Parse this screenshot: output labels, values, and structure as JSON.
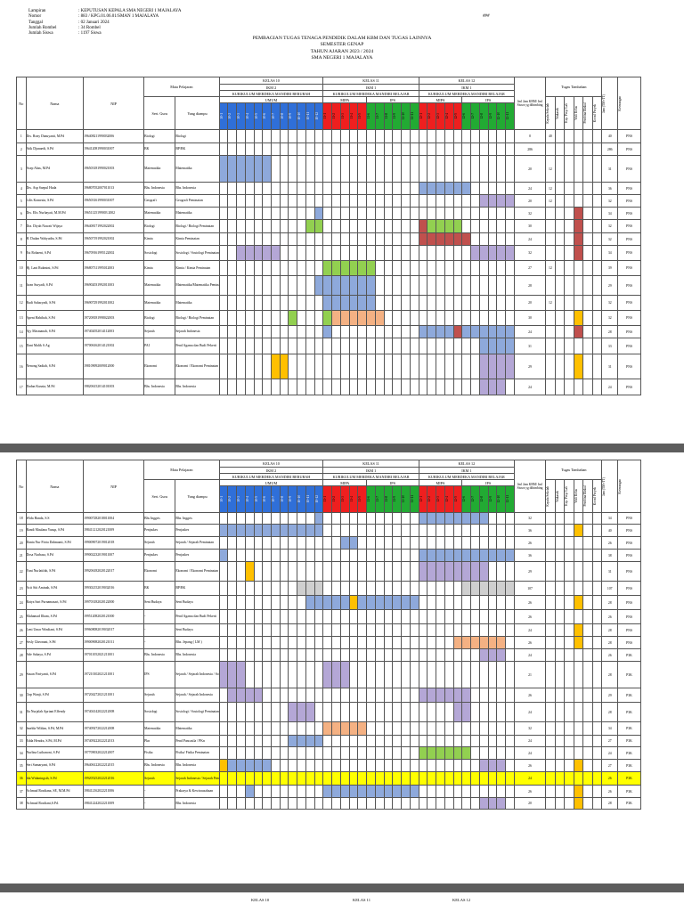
{
  "meta": [
    {
      "k": "Lampiran",
      "v": ": KEPUTUSAN KEPALA SMA NEGERI 1 MAJALAYA"
    },
    {
      "k": "Nomor",
      "v": ": 883 / KPG.01.06.01/SMAN 1 MAJALAYA"
    },
    {
      "k": "Tanggal",
      "v": ": 02 Januari 2024"
    },
    {
      "k": "Jumlah Rombel",
      "v": ": 34 Rombel"
    },
    {
      "k": "Jumlah Siswa",
      "v": ": 1197 Siswa"
    }
  ],
  "page_no": "###",
  "title": [
    "PEMBAGIAN TUGAS TENAGA PENDIDIK DALAM KBM DAN TUGAS LAINNYA",
    "SEMESTER GENAP",
    "TAHUN AJARAN 2023 / 2024",
    "SMA NEGERI 1 MAJALAYA"
  ],
  "header": {
    "no": "No",
    "nama": "Nama",
    "nip": "NIP",
    "mapel": "Mata Pelajaran",
    "sert": "Sert. Guru",
    "diampu": "Yang diampu",
    "k10": "KELAS 10",
    "k11": "KELAS 11",
    "k12": "KELAS 12",
    "ikm2": "IKM 2",
    "ikm1a": "IKM 1",
    "ikm1b": "IKM 1",
    "kur10": "KURIKULUM MERDEKA MANDIRI BERUBAH",
    "kur11": "KURIKULUM MERDEKA MANDIRI BELAJAR",
    "kur12": "KURIKULUM MERDEKA MANDIRI BELAJAR",
    "umum": "UMUM",
    "mipa": "MIPA",
    "ips": "IPS",
    "jml": "Jml Jam KBM/ Jml Siswa yg dibimbing",
    "tugas": "Tugas Tambahan",
    "tugas_cols": [
      "Kepala Sekolah",
      "Wakasek",
      "Kep. Perp/ Lab",
      "Wali Kelas",
      "Pembina Ekskul",
      "Koord Proyek"
    ],
    "jam": "Jam (TM+TT)",
    "ket": "Keterangan",
    "cls10": [
      "10-1",
      "10-2",
      "10-3",
      "10-4",
      "10-5",
      "10-6",
      "10-7",
      "10-8",
      "10-9",
      "10-10",
      "10-11",
      "10-12"
    ],
    "cls11": [
      "11-1",
      "11-2",
      "11-3",
      "11-4",
      "11-5",
      "11-6",
      "11-7",
      "11-8",
      "11-9",
      "11-10",
      "11-11"
    ],
    "cls12": [
      "12-1",
      "12-2",
      "12-3",
      "12-4",
      "12-5",
      "12-6",
      "12-7",
      "12-8",
      "12-9",
      "12-10",
      "12-11"
    ]
  },
  "rows1": [
    {
      "no": "1",
      "nama": "Drs. Rony Danuyanti, M.Pd",
      "nip": "196408211990032006",
      "sert": "Biologi",
      "diampu": "Biologi",
      "c10": "",
      "c11": "",
      "c12": "",
      "jml": "0",
      "x": "40",
      "t": "",
      "jam": "40",
      "ket": "PNS"
    },
    {
      "no": "2",
      "nama": "Atik Djunaedi, S.Pd",
      "nip": "196412081990031007",
      "sert": "BK",
      "diampu": "BP/BK",
      "c10": "",
      "c11": "000000000000000000ssssssss",
      "c12": "",
      "jml": "286",
      "x": "",
      "t": "",
      "jam": "286",
      "ket": "PNS"
    },
    {
      "no": "3",
      "nama": "Asep Abas, M.Pd",
      "nip": "196503181990021003",
      "sert": "Matematika",
      "diampu": "Matematika",
      "c10": "bbbbbb",
      "c11": "",
      "c12": "",
      "jml": "20",
      "x": "12",
      "t": "",
      "jam": "31",
      "ket": "PNS"
    },
    {
      "no": "4",
      "nama": "Drs. Asp Saepul Huda",
      "nip": "196807052007011013",
      "sert": "Bhs. Indonesia",
      "diampu": "Bhs. Indonesia",
      "c10": "",
      "c11": "",
      "c12": "bbbbbb",
      "jml": "24",
      "x": "12",
      "t": "",
      "jam": "36",
      "ket": "PNS"
    },
    {
      "no": "5",
      "nama": "Lilis Komesin, S.Pd",
      "nip": "196503161990031007",
      "sert": "Geografi",
      "diampu": "Geografi Peminatan",
      "c10": "",
      "c11": "",
      "c12": "0000000ppppp",
      "jml": "20",
      "x": "12",
      "t": "",
      "jam": "32",
      "ket": "PNS"
    },
    {
      "no": "6",
      "nama": "Drs. Elis Nurhayati, M.M.Pd",
      "nip": "19651125199003 2002",
      "sert": "Matematika",
      "diampu": "Matematika",
      "c10": "00000000000b",
      "c11": "",
      "c12": "",
      "jml": "32",
      "x": "",
      "t": "r",
      "jam": "34",
      "ket": "PNS"
    },
    {
      "no": "7",
      "nama": "Dra. Diyah Nawati Wijaya",
      "nip": "196408171992022002",
      "sert": "Biologi",
      "diampu": "Biologi / Biologi Peminatan",
      "c10": "0000000000gg",
      "c11": "",
      "c12": "rgggg",
      "jml": "30",
      "x": "",
      "t": "r",
      "jam": "32",
      "ket": "PNS"
    },
    {
      "no": "8",
      "nama": "H. Dadan Wahyudin, S.Pd",
      "nip": "196507191992021002",
      "sert": "Kimia",
      "diampu": "Kimia Peminatan",
      "c10": "",
      "c11": "",
      "c12": "rrrrrr",
      "jml": "24",
      "x": "",
      "t": "r",
      "jam": "32",
      "ket": "PNS"
    },
    {
      "no": "9",
      "nama": "Esi Rohaeni, S.Pd",
      "nip": "196709161995122002",
      "sert": "Sosiologi",
      "diampu": "Sosiologi / Sosiologi Peminatan",
      "c10": "00ppppp",
      "c11": "",
      "c12": "000000pppppp",
      "jml": "32",
      "x": "",
      "t": "r",
      "jam": "34",
      "ket": "PNS"
    },
    {
      "no": "10",
      "nama": "Hj. Lani Rukmini, S.Pd",
      "nip": "196807311995012003",
      "sert": "Kimia",
      "diampu": "Kimia / Kimia Peminatan",
      "c10": "",
      "c11": "gggggg",
      "c12": "",
      "jml": "27",
      "x": "12",
      "t": "",
      "jam": "39",
      "ket": "PNS"
    },
    {
      "no": "11",
      "nama": "Iwan Suryadi, S.Pd",
      "nip": "196902031992011003",
      "sert": "Matematika",
      "diampu": "Matematika/Matematika Peminatan",
      "c10": "00000000000b",
      "c11": "bbbbbb",
      "c12": "",
      "jml": "28",
      "x": "",
      "t": "",
      "jam": "29",
      "ket": "PNS"
    },
    {
      "no": "12",
      "nama": "Rudi Suharyadi, S.Pd",
      "nip": "196907291992011002",
      "sert": "Matematika",
      "diampu": "Matematika",
      "c10": "",
      "c11": "bbbbbb",
      "c12": "",
      "jml": "20",
      "x": "12",
      "t": "",
      "jam": "32",
      "ket": "PNS"
    },
    {
      "no": "13",
      "nama": "Apeni Habibah, S.Pd",
      "nip": "197208181998022003",
      "sert": "Biologi",
      "diampu": "Biologi / Biologi Peminatan",
      "c10": "00000000g",
      "c11": "goooooo",
      "c12": "",
      "jml": "30",
      "x": "",
      "t": "y",
      "jam": "32",
      "ket": "PNS"
    },
    {
      "no": "14",
      "nama": "Ajy Masmanah, S.Pd",
      "nip": "197402052014112003",
      "sert": "Sejarah",
      "diampu": "Sejarah Indonesia",
      "c10": "",
      "c11": "b",
      "c12": "bbbbrbbbbbbb",
      "jml": "24",
      "x": "",
      "t": "r",
      "jam": "28",
      "ket": "PNS"
    },
    {
      "no": "15",
      "nama": "Dani Malik S.Ag",
      "nip": "197006162014121002",
      "sert": "PAI",
      "diampu": "Pend Agama dan Budi Pekerti",
      "c10": "",
      "c11": "",
      "c12": "0000000bbbbbb",
      "jml": "31",
      "x": "",
      "t": "",
      "jam": "33",
      "ket": "PNS"
    },
    {
      "no": "16",
      "nama": "Nenong Sadiah, S.Pd",
      "nip": "198109092009012000",
      "sert": "Ekonomi",
      "diampu": "Ekonomi / Ekonomi Peminatan",
      "c10": "000000yy",
      "c11": "",
      "c12": "0000000ppppp",
      "jml": "29",
      "x": "",
      "t": "y",
      "jam": "31",
      "ket": "PNS"
    },
    {
      "no": "17",
      "nama": "Dadan Kusnia, M.Pd",
      "nip": "198206152014101003",
      "sert": "Bhs. Indonesia",
      "diampu": "Bhs. Indonesia",
      "c10": "",
      "c11": "",
      "c12": "0000000ppp",
      "jml": "24",
      "x": "",
      "t": "",
      "jam": "24",
      "ket": "PNS"
    }
  ],
  "rows2": [
    {
      "no": "18",
      "nama": "Wida Handa, S.S",
      "nip": "199007282018011004",
      "sert": "Bhs Inggris",
      "diampu": "Bhs. Inggris",
      "c10": "00000000000b",
      "c11": "",
      "c12": "bbbbbbbb",
      "jml": "32",
      "x": "",
      "t": "",
      "jam": "34",
      "ket": "PNS"
    },
    {
      "no": "19",
      "nama": "Randi Maulana Yusup, S.Pd",
      "nip": "198411212020121009",
      "sert": "Penjaskes",
      "diampu": "Penjaskes",
      "c10": "bbbbbbbbbbbb",
      "c11": "",
      "c12": "",
      "jml": "36",
      "x": "",
      "t": "y",
      "jam": "40",
      "ket": "PNS"
    },
    {
      "no": "20",
      "nama": "Dania Nur Fitria Dahmanti, S.Pd",
      "nip": "199009072019012018",
      "sert": "Sejarah",
      "diampu": "Sejarah / Sejarah Peminatan",
      "c10": "",
      "c11": "00bb",
      "c12": "",
      "jml": "26",
      "x": "",
      "t": "",
      "jam": "26",
      "ket": "PNS"
    },
    {
      "no": "21",
      "nama": "Dosa Nurhasa, S.Pd",
      "nip": "199002232019011007",
      "sert": "Penjaskes",
      "diampu": "Penjaskes",
      "c10": "b",
      "c11": "",
      "c12": "bbbbbbbbbbbb",
      "jml": "36",
      "x": "",
      "t": "",
      "jam": "38",
      "ket": "PNS"
    },
    {
      "no": "22",
      "nama": "Yuni Nurlatifah, S.Pd",
      "nip": "199206182020122017",
      "sert": "Ekonomi",
      "diampu": "Ekonomi / Ekonomi Peminatan",
      "c10": "000y",
      "c11": "",
      "c12": "pppppppp",
      "jml": "29",
      "x": "",
      "t": "",
      "jam": "31",
      "ket": "PNS"
    },
    {
      "no": "23",
      "nama": "Acit Siti Aminah, S.Pd",
      "nip": "199302152019032016",
      "sert": "BK",
      "diampu": "BP/BK",
      "c10": "000000000ssss",
      "c11": "",
      "c12": "00000ssssss",
      "jml": "107",
      "x": "",
      "t": "",
      "jam": "107",
      "ket": "PNS"
    },
    {
      "no": "24",
      "nama": "Ratya Sari Purnamasari, S.Pd",
      "nip": "199703182020122000",
      "sert": "Seni Budaya",
      "diampu": "Seni Budaya",
      "c10": "0000000000bb",
      "c11": "bbbybbbbbbbb",
      "c12": "",
      "jml": "26",
      "x": "",
      "t": "y",
      "jam": "28",
      "ket": "PNS"
    },
    {
      "no": "25",
      "nama": "Muhamad Ilham, S.Pd",
      "nip": "199512082020121000",
      "sert": "-",
      "diampu": "Pend Agama dan Budi Pekerti",
      "c10": "",
      "c11": "",
      "c12": "",
      "jml": "26",
      "x": "",
      "t": "",
      "jam": "26",
      "ket": "PNS"
    },
    {
      "no": "26",
      "nama": "Leni Umar Windiani, S.Pd",
      "nip": "199608082019032017",
      "sert": "-",
      "diampu": "Seni Budaya",
      "c10": "",
      "c11": "",
      "c12": "",
      "jml": "24",
      "x": "",
      "t": "y",
      "jam": "28",
      "ket": "PNS"
    },
    {
      "no": "27",
      "nama": "Sesly Gheonani, S.Pd",
      "nip": "199009082020121011",
      "sert": "-",
      "diampu": "Bhs. Jepang ( LM )",
      "c10": "",
      "c11": "",
      "c12": "0000oooooo",
      "jml": "26",
      "x": "",
      "t": "y",
      "jam": "28",
      "ket": "PNS"
    },
    {
      "no": "28",
      "nama": "Ade Sahaya, S.Pd",
      "nip": "197011052021211001",
      "sert": "Bhs. Indonesia",
      "diampu": "Bhs. Indonesia",
      "c10": "",
      "c11": "",
      "c12": "0000000ppp",
      "jml": "24",
      "x": "",
      "t": "",
      "jam": "26",
      "ket": "P3K"
    },
    {
      "no": "29",
      "nama": "Susan Firriyanti, S.Pd",
      "nip": "197210102021211001",
      "sert": "IPS",
      "diampu": "Sejarah / Sejarah Indonesia / Sosiologi",
      "c10": "ppp",
      "c11": "ppp",
      "c12": "",
      "jml": "21",
      "x": "",
      "t": "",
      "jam": "28",
      "ket": "P3K"
    },
    {
      "no": "30",
      "nama": "Oap Wanji, S.Pd",
      "nip": "197204272021211001",
      "sert": "Sejarah",
      "diampu": "Sejarah / Sejarah Indonesia",
      "c10": "0pppp",
      "c11": "",
      "c12": "pppppp",
      "jml": "26",
      "x": "",
      "t": "",
      "jam": "29",
      "ket": "P3K"
    },
    {
      "no": "31",
      "nama": "Ifa Nurjalah Apriani Effendy",
      "nip": "197404142022212008",
      "sert": "Sosiologi",
      "diampu": "Sosiologi / Sosiologi Peminatan",
      "c10": "00000000ppp",
      "c11": "",
      "c12": "0000pp",
      "jml": "24",
      "x": "",
      "t": "",
      "jam": "28",
      "ket": "P3K"
    },
    {
      "no": "32",
      "nama": "Imelda Wildan, S.Pd, M.Pd",
      "nip": "197409272022212008",
      "sert": "Matematika",
      "diampu": "Matematika",
      "c10": "",
      "c11": "ooooo",
      "c12": "",
      "jml": "32",
      "x": "",
      "t": "",
      "jam": "34",
      "ket": "P3K"
    },
    {
      "no": "33",
      "nama": "Edda Hendra, S.Pd, M.Pd",
      "nip": "197409222022212013",
      "sert": "Pkn",
      "diampu": "Pend Pancasila / PKn",
      "c10": "00000000bbbbbb",
      "c11": "",
      "c12": "",
      "jml": "24",
      "x": "",
      "t": "",
      "jam": "27",
      "ket": "P3K"
    },
    {
      "no": "34",
      "nama": "Nurlina Luthanoni, S.Pd",
      "nip": "197709032022212007",
      "sert": "Fisika",
      "diampu": "Fisika/ Fisika Peminatan",
      "c10": "",
      "c11": "",
      "c12": "gggggg",
      "jml": "24",
      "x": "",
      "t": "",
      "jam": "24",
      "ket": "P3K"
    },
    {
      "no": "35",
      "nama": "Seri Sumaryani, S.Pd",
      "nip": "196406122022212015",
      "sert": "Bhs. Indonesia",
      "diampu": "Bhs. Indonesia",
      "c10": "ybbbbb",
      "c11": "",
      "c12": "0000000ppp",
      "jml": "26",
      "x": "",
      "t": "y",
      "jam": "27",
      "ket": "P3K"
    },
    {
      "no": "36",
      "nama": "Ida Widaningsih, S.Pd",
      "nip": "199205252022212016",
      "sert": "Sejarah",
      "diampu": "Sejarah Indonesia / Sejarah Peminatan",
      "c10": "",
      "c11": "",
      "c12": "",
      "jml": "24",
      "x": "",
      "t": "",
      "jam": "26",
      "ket": "P3K",
      "hl": true
    },
    {
      "no": "37",
      "nama": "Achmad Rosdiana, SE, M.M.Pd",
      "nip": "198412162022211006",
      "sert": "-",
      "diampu": "Prakarya & Kewirausahaan",
      "c10": "000b",
      "c11": "bbbbbbbbbbbb",
      "c12": "",
      "jml": "26",
      "x": "",
      "t": "y",
      "jam": "26",
      "ket": "P3K"
    },
    {
      "no": "38",
      "nama": "Achmad Rosdiani,S.Pd.",
      "nip": "198412242022211009",
      "sert": "-",
      "diampu": "Bhs. Indonesia",
      "c10": "",
      "c11": "",
      "c12": "0000000ppp",
      "jml": "20",
      "x": "",
      "t": "y",
      "jam": "28",
      "ket": "P3K"
    }
  ],
  "p3": {
    "k10": "KELAS 10",
    "k11": "KELAS 11",
    "k12": "KELAS 12"
  }
}
